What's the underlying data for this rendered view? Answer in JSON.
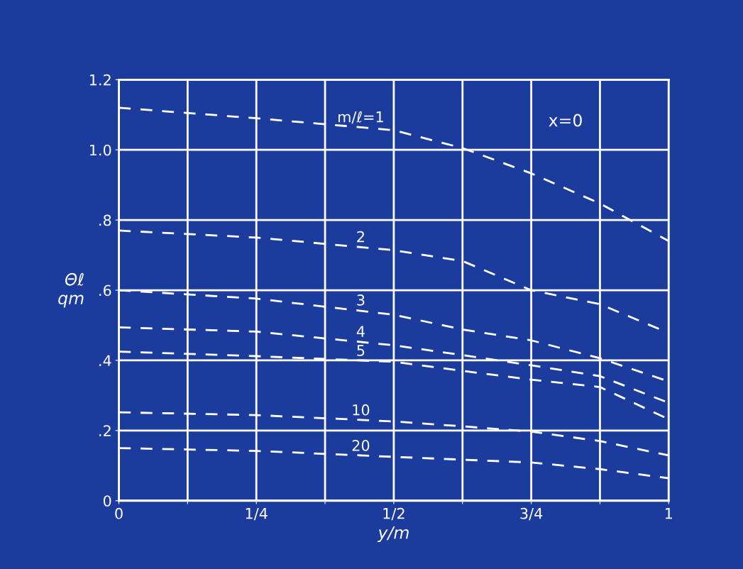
{
  "chart_data": {
    "type": "line",
    "xlabel": "y/m",
    "ylabel": "Θℓ\nqm",
    "x": [
      0,
      0.25,
      0.5,
      0.625,
      0.75,
      0.875,
      1
    ],
    "series": [
      {
        "name": "m/ℓ=1",
        "color": "#ffffff",
        "values": [
          1.12,
          1.09,
          1.056,
          1.005,
          0.933,
          0.847,
          0.74
        ]
      },
      {
        "name": "2",
        "color": "#ffffff",
        "values": [
          0.77,
          0.75,
          0.714,
          0.683,
          0.6,
          0.56,
          0.478
        ]
      },
      {
        "name": "3",
        "color": "#ffffff",
        "values": [
          0.6,
          0.576,
          0.53,
          0.488,
          0.457,
          0.406,
          0.34
        ]
      },
      {
        "name": "4",
        "color": "#ffffff",
        "values": [
          0.494,
          0.482,
          0.443,
          0.415,
          0.386,
          0.355,
          0.279
        ]
      },
      {
        "name": "5",
        "color": "#ffffff",
        "values": [
          0.425,
          0.412,
          0.396,
          0.37,
          0.345,
          0.324,
          0.232
        ]
      },
      {
        "name": "10",
        "color": "#ffffff",
        "values": [
          0.252,
          0.244,
          0.226,
          0.212,
          0.197,
          0.17,
          0.129
        ]
      },
      {
        "name": "20",
        "color": "#ffffff",
        "values": [
          0.15,
          0.142,
          0.125,
          0.117,
          0.109,
          0.09,
          0.064
        ]
      }
    ],
    "annotations": [
      "x=0"
    ],
    "xlim": [
      0,
      1
    ],
    "ylim": [
      0,
      1.2
    ],
    "xticks": [
      0,
      {
        "value": 0.125,
        "label": null
      },
      {
        "value": 0.25,
        "label": "1/4"
      },
      {
        "value": 0.375,
        "label": null
      },
      {
        "value": 0.5,
        "label": "1/2"
      },
      {
        "value": 0.625,
        "label": null
      },
      {
        "value": 0.75,
        "label": "3/4"
      },
      {
        "value": 0.875,
        "label": null
      },
      1
    ],
    "yticks": [
      0,
      {
        "value": 0.2,
        "label": ".2"
      },
      {
        "value": 0.4,
        "label": ".4"
      },
      {
        "value": 0.6,
        "label": ".6"
      },
      {
        "value": 0.8,
        "label": ".8"
      },
      {
        "value": 1.0,
        "label": "1.0"
      },
      {
        "value": 1.2,
        "label": "1.2"
      }
    ],
    "grid": true,
    "legend": false,
    "marker": "none",
    "line_style": "dashed"
  }
}
